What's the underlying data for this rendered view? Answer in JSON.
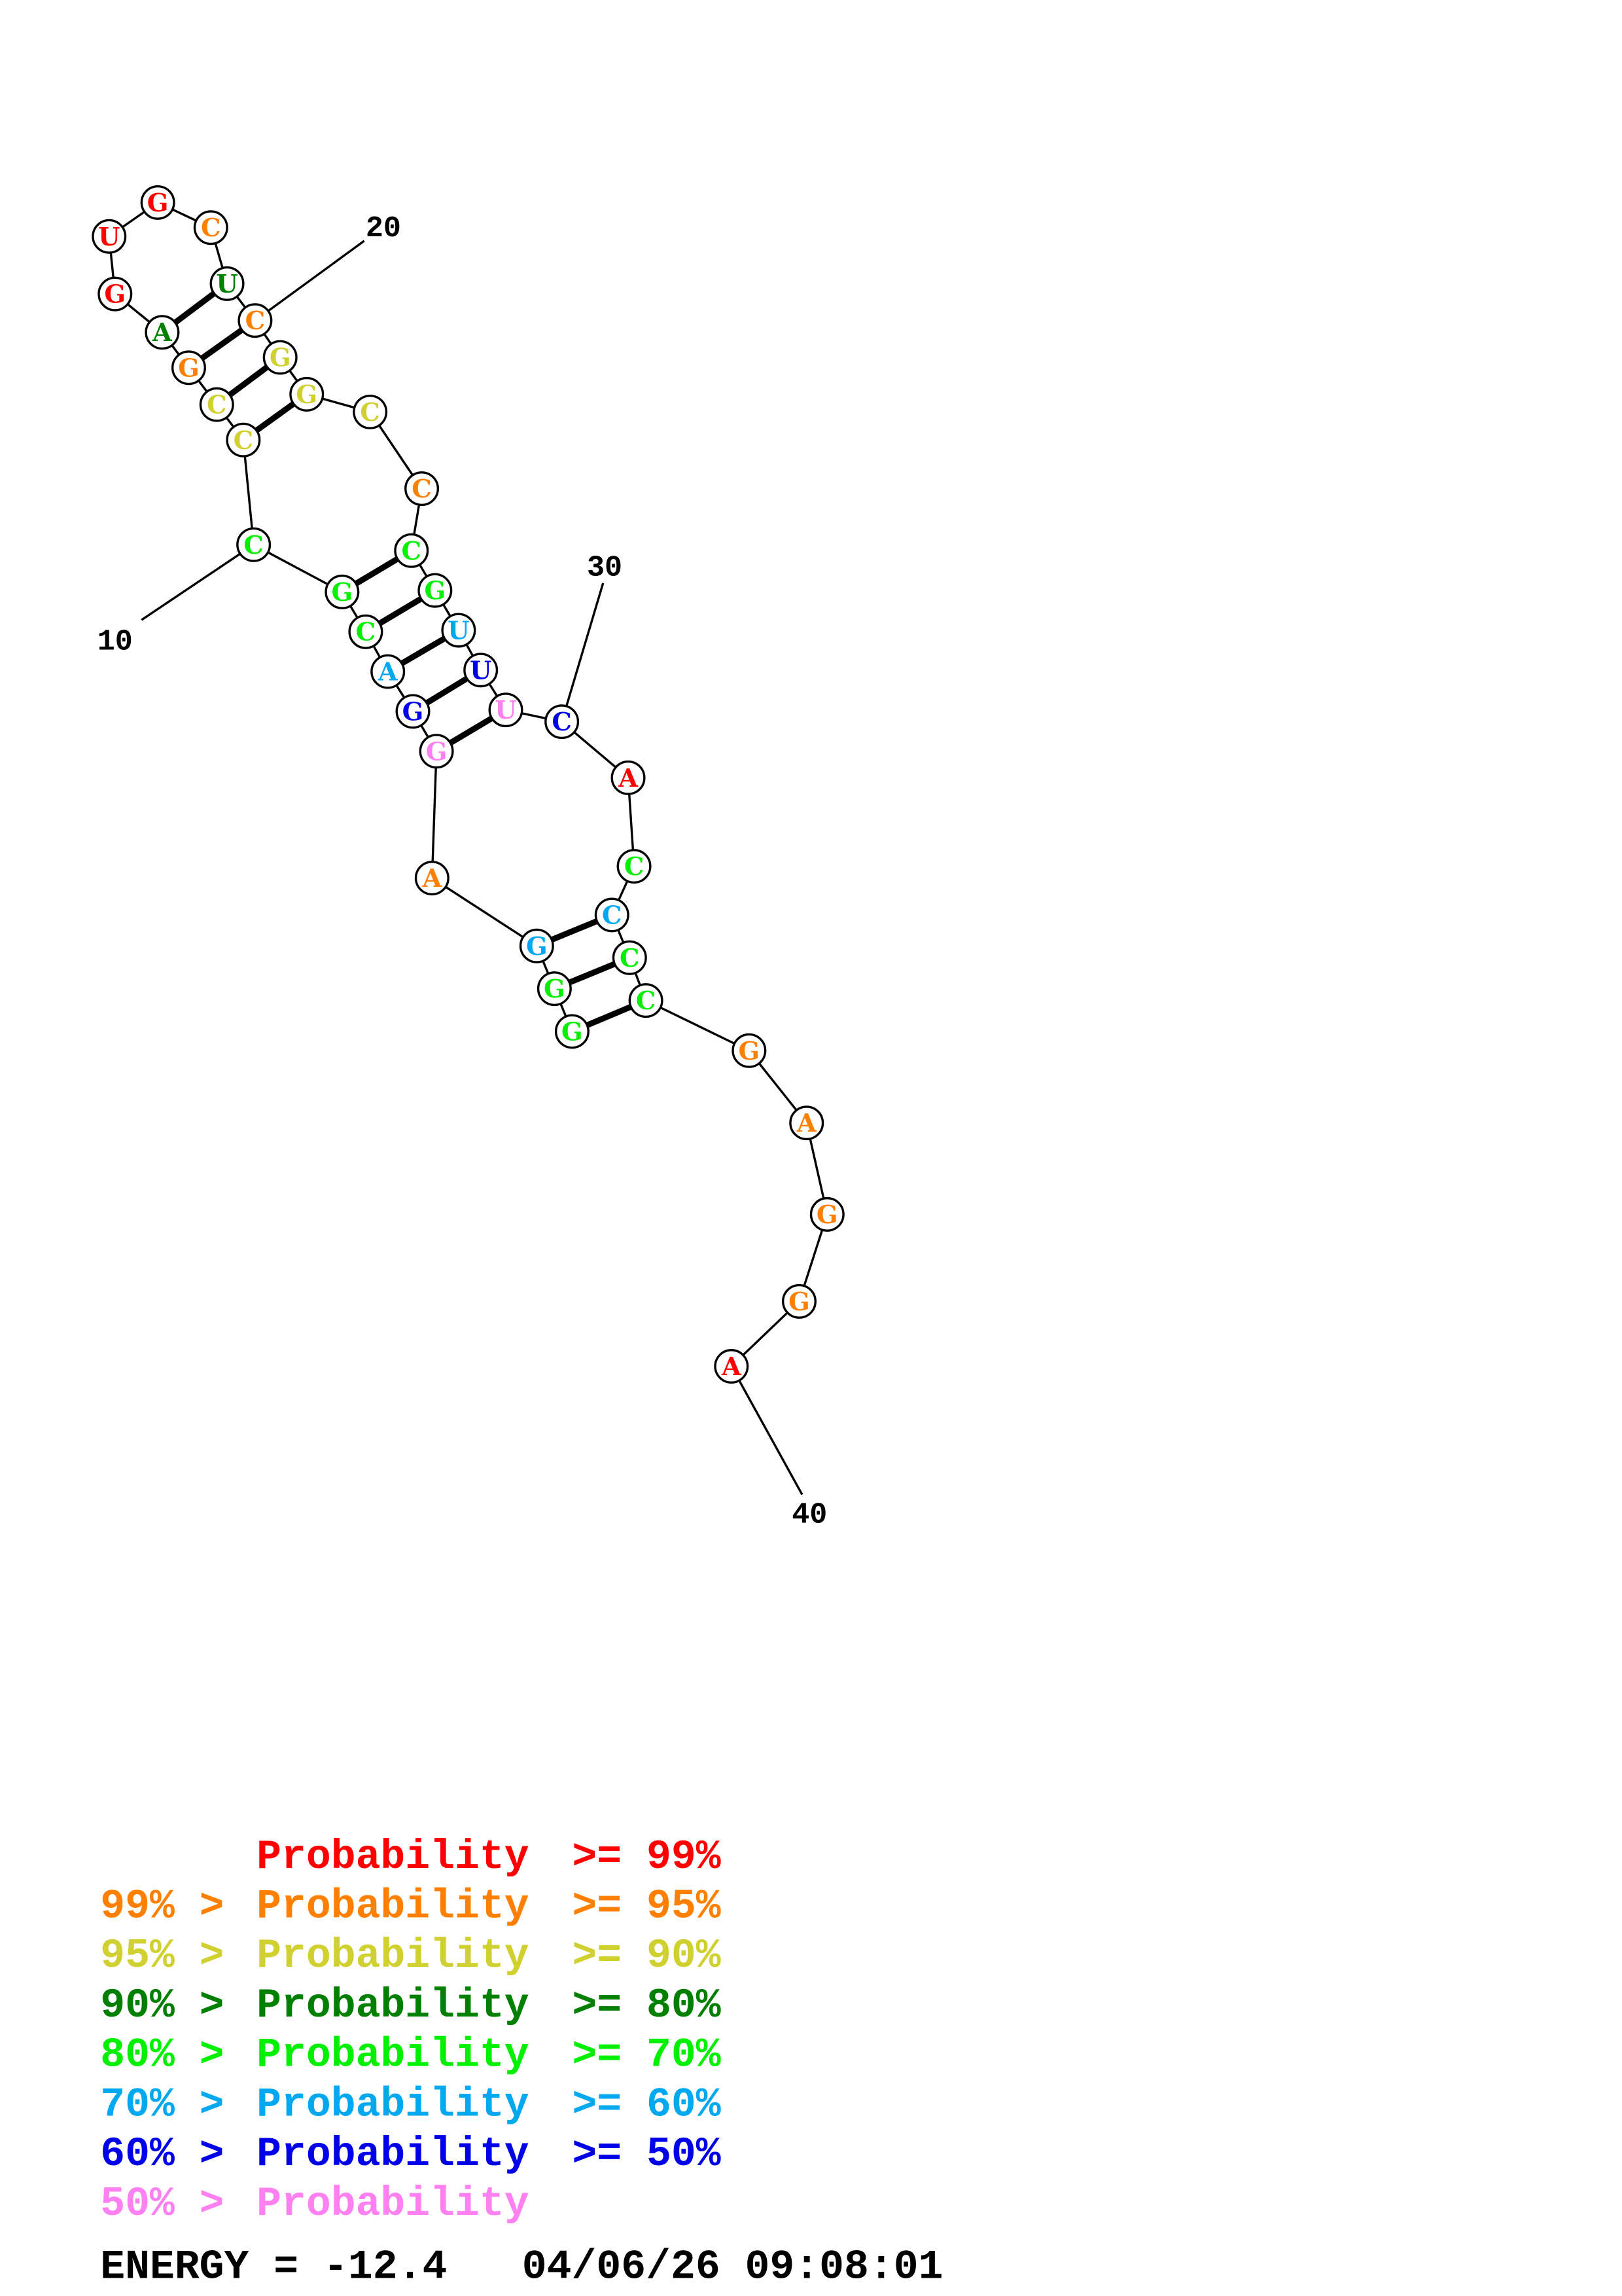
{
  "structure": {
    "sequence": [
      "G",
      "G",
      "G",
      "A",
      "G",
      "G",
      "A",
      "C",
      "G",
      "C",
      "C",
      "C",
      "G",
      "A",
      "G",
      "U",
      "G",
      "C",
      "U",
      "C",
      "G",
      "G",
      "C",
      "C",
      "C",
      "G",
      "U",
      "U",
      "U",
      "C",
      "A",
      "C",
      "C",
      "C",
      "C",
      "G",
      "A",
      "G",
      "G",
      "A"
    ],
    "probability_class": [
      4,
      4,
      5,
      1,
      7,
      6,
      5,
      4,
      4,
      4,
      2,
      2,
      1,
      3,
      0,
      0,
      0,
      1,
      3,
      1,
      2,
      2,
      2,
      1,
      4,
      4,
      5,
      6,
      7,
      6,
      0,
      4,
      5,
      4,
      4,
      1,
      1,
      1,
      1,
      0
    ],
    "pairs": [
      [
        1,
        35
      ],
      [
        2,
        34
      ],
      [
        3,
        33
      ],
      [
        5,
        29
      ],
      [
        6,
        28
      ],
      [
        7,
        27
      ],
      [
        8,
        26
      ],
      [
        9,
        25
      ],
      [
        11,
        22
      ],
      [
        12,
        21
      ],
      [
        13,
        20
      ],
      [
        14,
        19
      ]
    ],
    "position_labels": [
      "10",
      "20",
      "30",
      "40"
    ]
  },
  "legend": {
    "colors": [
      "#ff0000",
      "#ff8000",
      "#d0d030",
      "#007f00",
      "#00f000",
      "#00a8f0",
      "#0000e8",
      "#ff80f0"
    ],
    "rows": [
      {
        "prefix": "",
        "label": "Probability",
        "suffix": ">= 99%"
      },
      {
        "prefix": "99% >",
        "label": "Probability",
        "suffix": ">= 95%"
      },
      {
        "prefix": "95% >",
        "label": "Probability",
        "suffix": ">= 90%"
      },
      {
        "prefix": "90% >",
        "label": "Probability",
        "suffix": ">= 80%"
      },
      {
        "prefix": "80% >",
        "label": "Probability",
        "suffix": ">= 70%"
      },
      {
        "prefix": "70% >",
        "label": "Probability",
        "suffix": ">= 60%"
      },
      {
        "prefix": "60% >",
        "label": "Probability",
        "suffix": ">= 50%"
      },
      {
        "prefix": "50% >",
        "label": "Probability",
        "suffix": ""
      }
    ]
  },
  "footer": {
    "energy": "ENERGY = -12.4",
    "timestamp": "04/06/26 09:08:01"
  }
}
